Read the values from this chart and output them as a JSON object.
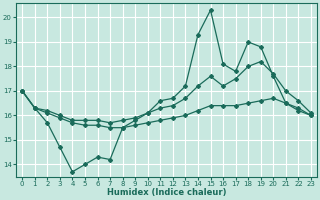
{
  "title": "",
  "xlabel": "Humidex (Indice chaleur)",
  "ylabel": "",
  "bg_color": "#c8e8e0",
  "grid_color": "#ffffff",
  "line_color": "#1a6b5a",
  "xlim": [
    -0.5,
    23.5
  ],
  "ylim": [
    13.5,
    20.6
  ],
  "xticks": [
    0,
    1,
    2,
    3,
    4,
    5,
    6,
    7,
    8,
    9,
    10,
    11,
    12,
    13,
    14,
    15,
    16,
    17,
    18,
    19,
    20,
    21,
    22,
    23
  ],
  "yticks": [
    14,
    15,
    16,
    17,
    18,
    19,
    20
  ],
  "series1": [
    17.0,
    16.3,
    15.7,
    14.7,
    13.7,
    14.0,
    14.3,
    14.2,
    15.5,
    15.8,
    16.1,
    16.6,
    16.7,
    17.2,
    19.3,
    20.3,
    18.1,
    17.8,
    19.0,
    18.8,
    17.6,
    16.5,
    16.3,
    16.0
  ],
  "series2": [
    17.0,
    16.3,
    16.2,
    16.0,
    15.8,
    15.8,
    15.8,
    15.7,
    15.8,
    15.9,
    16.1,
    16.3,
    16.4,
    16.7,
    17.2,
    17.6,
    17.2,
    17.5,
    18.0,
    18.2,
    17.7,
    17.0,
    16.6,
    16.1
  ],
  "series3": [
    17.0,
    16.3,
    16.1,
    15.9,
    15.7,
    15.6,
    15.6,
    15.5,
    15.5,
    15.6,
    15.7,
    15.8,
    15.9,
    16.0,
    16.2,
    16.4,
    16.4,
    16.4,
    16.5,
    16.6,
    16.7,
    16.5,
    16.2,
    16.0
  ]
}
